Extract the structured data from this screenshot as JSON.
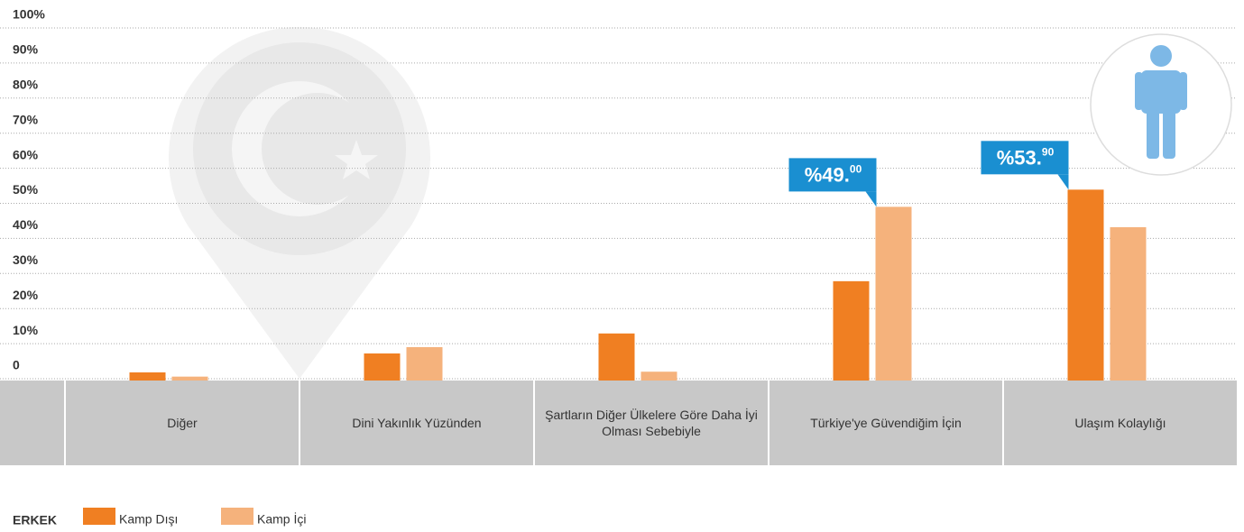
{
  "chart_data": {
    "type": "bar",
    "categories": [
      "Diğer",
      "Dini Yakınlık Yüzünden",
      "Şartların Diğer Ülkelere Göre Daha İyi Olması Sebebiyle",
      "Türkiye'ye Güvendiğim İçin",
      "Ulaşım Kolaylığı"
    ],
    "series": [
      {
        "name": "Kamp Dışı",
        "color": "#f07f22",
        "values": [
          1.8,
          7.2,
          12.9,
          27.8,
          53.9
        ],
        "value_labels": [
          null,
          null,
          null,
          null,
          "%53.90"
        ]
      },
      {
        "name": "Kamp İçi",
        "color": "#f5b27c",
        "values": [
          0.6,
          9,
          2,
          49,
          43.2
        ],
        "value_labels": [
          null,
          null,
          null,
          "%49.00",
          null
        ]
      }
    ],
    "legend_title": "ERKEK",
    "ylim": [
      0,
      100
    ],
    "yticks": [
      0,
      {
        "value": 10,
        "label": "10%"
      },
      {
        "value": 20,
        "label": "20%"
      },
      {
        "value": 30,
        "label": "30%"
      },
      {
        "value": 40,
        "label": "40%"
      },
      {
        "value": 50,
        "label": "50%"
      },
      {
        "value": 60,
        "label": "60%"
      },
      {
        "value": 70,
        "label": "70%"
      },
      {
        "value": 80,
        "label": "80%"
      },
      {
        "value": 90,
        "label": "90%"
      },
      {
        "value": 100,
        "label": "100%"
      }
    ],
    "grid": true,
    "label_color": "#1a8fd1"
  }
}
